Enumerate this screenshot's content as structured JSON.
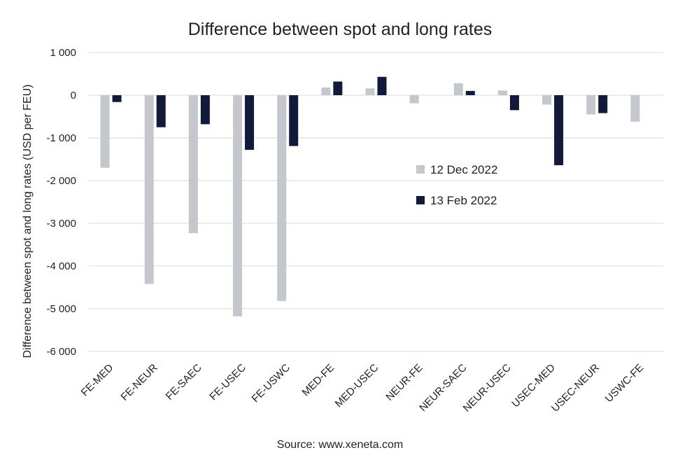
{
  "chart_data": {
    "type": "bar",
    "title": "Difference between spot and long rates",
    "xlabel": "",
    "ylabel": "Difference between spot and long rates (USD per FEU)",
    "source": "Source: www.xeneta.com",
    "categories": [
      "FE-MED",
      "FE-NEUR",
      "FE-SAEC",
      "FE-USEC",
      "FE-USWC",
      "MED-FE",
      "MED-USEC",
      "NEUR-FE",
      "NEUR-SAEC",
      "NEUR-USEC",
      "USEC-MED",
      "USEC-NEUR",
      "USWC-FE"
    ],
    "series": [
      {
        "name": "12 Dec 2022",
        "color": "#c4c7cc",
        "values": [
          -1700,
          -4420,
          -3230,
          -5180,
          -4820,
          180,
          160,
          -190,
          280,
          110,
          -220,
          -450,
          -620
        ]
      },
      {
        "name": "13 Feb 2022",
        "color": "#111a3a",
        "values": [
          -160,
          -750,
          -680,
          -1280,
          -1190,
          320,
          430,
          null,
          100,
          -350,
          -1640,
          -420,
          null
        ]
      }
    ],
    "ylim": [
      -6000,
      1000
    ],
    "yticks": [
      1000,
      0,
      -1000,
      -2000,
      -3000,
      -4000,
      -5000,
      -6000
    ],
    "ytick_labels": [
      "1 000",
      "0",
      "-1 000",
      "-2 000",
      "-3 000",
      "-4 000",
      "-5 000",
      "-6 000"
    ],
    "grid": true,
    "legend_position": "center-right"
  }
}
